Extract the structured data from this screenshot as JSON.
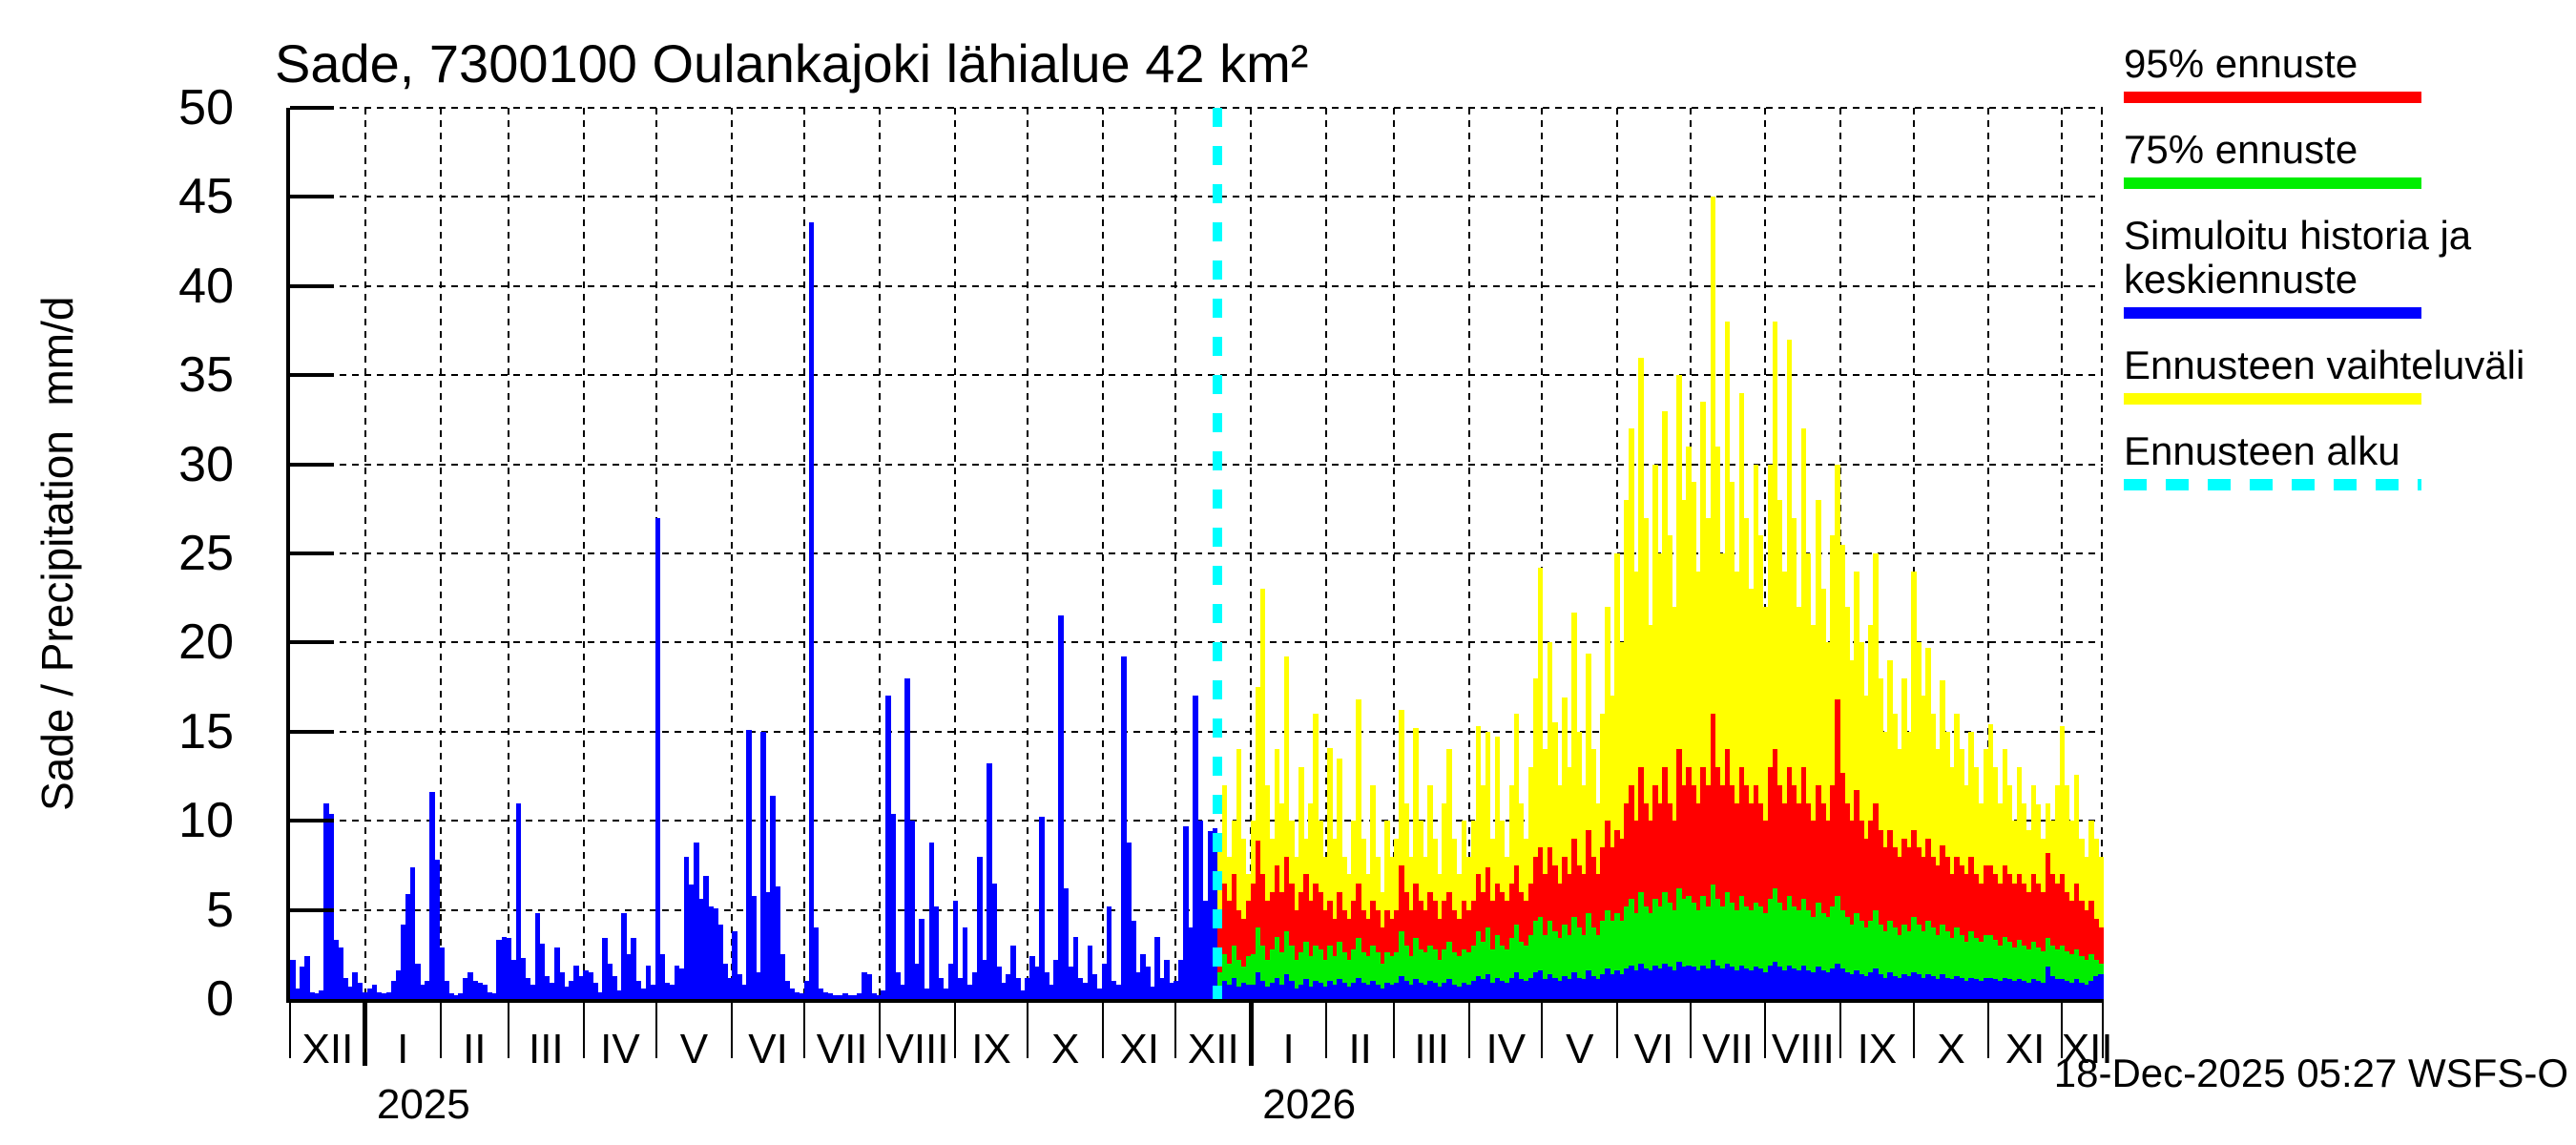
{
  "title": "Sade, 7300100 Oulankajoki lähialue 42 km²",
  "footer": "18-Dec-2025 05:27 WSFS-O",
  "y_axis": {
    "label": "Sade / Precipitation  mm/d",
    "tick_step": 5,
    "max": 50
  },
  "legend": {
    "items": [
      {
        "label": "95% ennuste",
        "color": "#ff0000",
        "style": "solid"
      },
      {
        "label": "75% ennuste",
        "color": "#00ee00",
        "style": "solid"
      },
      {
        "label": "Simuloitu historia ja keskiennuste",
        "color": "#0000ff",
        "style": "solid"
      },
      {
        "label": "Ennusteen vaihteluväli",
        "color": "#ffff00",
        "style": "solid"
      },
      {
        "label": "Ennusteen alku",
        "color": "#00ffff",
        "style": "dashed"
      }
    ]
  },
  "chart_data": {
    "type": "bar",
    "title": "Sade, 7300100 Oulankajoki lähialue 42 km²",
    "xlabel": "",
    "ylabel": "Sade / Precipitation mm/d",
    "ylim": [
      0,
      50
    ],
    "grid": true,
    "legend_position": "right-top",
    "total_days": 747,
    "forecast_start_day": 382,
    "days_per_value": 2,
    "months": [
      {
        "label": "XII",
        "start": 0
      },
      {
        "label": "I",
        "start": 31,
        "year_tick": true
      },
      {
        "label": "II",
        "start": 62
      },
      {
        "label": "III",
        "start": 90
      },
      {
        "label": "IV",
        "start": 121
      },
      {
        "label": "V",
        "start": 151
      },
      {
        "label": "VI",
        "start": 182
      },
      {
        "label": "VII",
        "start": 212
      },
      {
        "label": "VIII",
        "start": 243
      },
      {
        "label": "IX",
        "start": 274
      },
      {
        "label": "X",
        "start": 304
      },
      {
        "label": "XI",
        "start": 335
      },
      {
        "label": "XII",
        "start": 365
      },
      {
        "label": "I",
        "start": 396,
        "year_tick": true
      },
      {
        "label": "II",
        "start": 427
      },
      {
        "label": "III",
        "start": 455
      },
      {
        "label": "IV",
        "start": 486
      },
      {
        "label": "V",
        "start": 516
      },
      {
        "label": "VI",
        "start": 547
      },
      {
        "label": "VII",
        "start": 577
      },
      {
        "label": "VIII",
        "start": 608
      },
      {
        "label": "IX",
        "start": 639
      },
      {
        "label": "X",
        "start": 669
      },
      {
        "label": "XI",
        "start": 700
      },
      {
        "label": "XII",
        "start": 730
      }
    ],
    "years": [
      {
        "label": "2025",
        "day": 31
      },
      {
        "label": "2026",
        "day": 396
      }
    ],
    "history_series": {
      "name": "Simuloitu historia ja keskiennuste",
      "color": "#0000ff",
      "values": [
        2.2,
        0.6,
        1.8,
        2.4,
        0.4,
        0.3,
        0.5,
        11.0,
        10.4,
        3.3,
        2.9,
        1.2,
        0.7,
        1.5,
        0.9,
        0.4,
        0.6,
        0.8,
        0.4,
        0.3,
        0.4,
        1.0,
        1.6,
        4.2,
        5.9,
        7.4,
        2.0,
        0.8,
        1.0,
        11.6,
        7.8,
        2.9,
        1.0,
        0.3,
        0.2,
        0.3,
        1.2,
        1.5,
        1.0,
        0.9,
        0.8,
        0.4,
        0.3,
        3.3,
        3.5,
        3.4,
        2.2,
        11.0,
        2.3,
        1.2,
        0.8,
        4.8,
        3.1,
        1.3,
        0.9,
        2.9,
        1.5,
        0.7,
        1.0,
        1.9,
        1.3,
        1.6,
        1.5,
        0.9,
        0.4,
        3.4,
        2.0,
        1.3,
        0.5,
        4.8,
        2.5,
        3.4,
        1.0,
        0.6,
        1.9,
        0.8,
        27.0,
        2.5,
        0.9,
        0.8,
        1.9,
        1.7,
        8.0,
        6.4,
        8.8,
        5.6,
        6.9,
        5.2,
        5.1,
        4.2,
        2.0,
        1.2,
        3.8,
        1.4,
        0.8,
        15.1,
        5.8,
        1.5,
        15.0,
        6.0,
        11.4,
        6.3,
        2.5,
        1.0,
        0.6,
        0.4,
        0.3,
        1.0,
        43.6,
        4.0,
        0.6,
        0.4,
        0.3,
        0.2,
        0.2,
        0.3,
        0.2,
        0.2,
        0.3,
        1.5,
        1.4,
        0.3,
        0.2,
        0.5,
        17.0,
        10.4,
        1.5,
        0.8,
        18.0,
        10.0,
        2.0,
        4.5,
        0.6,
        8.8,
        5.2,
        1.2,
        0.6,
        2.0,
        5.5,
        1.2,
        4.0,
        0.8,
        1.5,
        8.0,
        2.2,
        13.2,
        6.5,
        1.8,
        0.9,
        1.4,
        3.0,
        1.2,
        0.5,
        1.2,
        2.4,
        1.8,
        10.2,
        1.5,
        0.8,
        2.2,
        21.5,
        6.2,
        1.8,
        3.5,
        1.2,
        0.9,
        3.0,
        1.4,
        0.6,
        2.0,
        5.2,
        1.0,
        0.8,
        19.2,
        8.8,
        4.4,
        1.5,
        2.5,
        1.8,
        0.7,
        3.5,
        1.2,
        2.2,
        0.9,
        1.0,
        2.2,
        9.7,
        4.0,
        17.0,
        10.0,
        5.5,
        9.4,
        9.6
      ]
    },
    "forecast_series": [
      {
        "name": "Ennusteen vaihteluväli",
        "color": "#ffff00",
        "values": [
          9,
          12,
          8,
          10,
          14,
          9,
          7,
          10,
          17.5,
          23,
          12,
          9,
          14,
          11,
          19.2,
          10,
          8,
          13,
          9,
          11,
          16,
          10,
          8,
          14.1,
          9,
          13.5,
          8,
          7,
          10,
          16.8,
          9,
          7,
          12,
          8,
          6,
          10,
          8,
          9,
          16.2,
          11,
          8,
          15.2,
          10,
          8,
          12,
          9,
          7,
          11,
          14,
          9,
          7,
          10,
          8,
          10,
          15.3,
          12,
          15,
          9,
          14.7,
          10,
          8,
          12,
          16,
          11,
          9,
          13,
          18,
          24.2,
          14,
          20,
          15.5,
          12,
          16.9,
          13,
          21.7,
          15,
          12,
          19.4,
          14,
          11,
          16,
          22,
          17,
          25,
          20,
          28,
          32,
          24,
          36,
          27,
          21,
          30,
          25,
          33,
          26,
          22,
          35,
          28,
          31,
          29,
          24,
          33.5,
          27,
          45,
          31,
          25,
          38,
          29,
          24,
          34,
          27,
          23,
          30,
          26,
          22,
          30,
          38,
          28,
          24,
          37,
          27,
          22,
          32,
          25,
          21,
          28,
          23,
          20,
          26,
          30,
          25.5,
          22,
          19,
          24,
          20,
          17,
          21,
          25,
          18,
          15,
          19,
          16,
          14,
          18,
          15,
          24,
          20,
          17,
          19.7,
          16,
          14,
          17.9,
          15,
          13,
          16,
          14,
          12,
          15,
          13,
          11,
          14,
          15.4,
          13,
          11,
          14,
          12,
          10,
          13,
          11,
          9.5,
          12,
          10.9,
          9,
          11,
          10,
          12,
          15.3,
          12,
          10,
          12.6,
          9,
          8,
          10,
          9,
          8
        ]
      },
      {
        "name": "95% ennuste",
        "color": "#ff0000",
        "values": [
          4,
          6.5,
          5.5,
          7,
          5,
          4.5,
          5.5,
          6.5,
          8.9,
          7,
          5.5,
          6,
          7.5,
          6,
          8,
          6.5,
          5,
          6,
          7,
          5.5,
          6.5,
          6,
          5,
          5.5,
          4.5,
          6,
          5,
          4.5,
          5.5,
          6.5,
          5,
          4.5,
          5.5,
          5,
          4,
          5,
          4.5,
          5,
          7.5,
          6,
          5,
          6.5,
          5.5,
          5,
          6,
          5.5,
          4.5,
          5.5,
          6,
          5,
          4.5,
          5.5,
          5,
          5.5,
          7,
          6,
          7.4,
          5.5,
          6.5,
          6,
          5.5,
          6.5,
          7.5,
          6,
          5.5,
          6.5,
          8,
          8.5,
          7,
          8.5,
          7.5,
          6.5,
          8,
          7,
          9,
          7.5,
          7,
          9.5,
          8,
          7,
          8.5,
          10,
          8.5,
          9.5,
          9,
          11,
          12,
          10,
          13,
          11,
          10,
          12,
          11,
          13,
          11,
          10,
          14,
          12,
          13,
          12,
          11,
          13,
          12,
          16,
          13,
          12,
          14,
          12,
          11,
          13,
          12,
          11,
          12,
          11,
          10,
          13,
          14,
          12,
          11,
          13,
          12,
          11,
          13,
          11,
          10,
          12,
          11,
          10,
          12,
          16.8,
          12.7,
          11,
          10,
          11.7,
          10,
          9,
          10,
          11,
          9.5,
          8.5,
          9.5,
          8.5,
          8,
          9,
          8.5,
          9.5,
          8.5,
          8,
          9,
          8,
          7.5,
          8.6,
          8,
          7,
          8,
          7.5,
          7,
          8,
          7,
          6.5,
          7.5,
          7.5,
          7,
          6.5,
          7.5,
          7,
          6.5,
          7,
          6.5,
          6,
          7,
          6.5,
          6,
          8.2,
          7,
          6.5,
          7,
          6,
          5.5,
          6.5,
          5.5,
          5,
          5.5,
          4.5,
          4
        ]
      },
      {
        "name": "75% ennuste",
        "color": "#00ee00",
        "values": [
          1.5,
          2.5,
          2,
          3,
          2.2,
          1.8,
          2.4,
          2.5,
          4,
          3,
          2.2,
          2.8,
          3.5,
          2.6,
          3.8,
          3,
          2.2,
          2.6,
          3.2,
          2.4,
          3,
          2.8,
          2.2,
          3,
          2.4,
          3.2,
          2.6,
          2.2,
          2.8,
          3.4,
          2.6,
          2.4,
          3,
          2.6,
          2,
          2.6,
          2.4,
          2.6,
          3.8,
          3,
          2.4,
          3.4,
          2.8,
          2.6,
          3,
          2.8,
          2.2,
          2.8,
          3.2,
          2.6,
          2.4,
          2.8,
          2.6,
          3,
          3.8,
          3.2,
          4,
          2.8,
          3.6,
          3,
          2.8,
          3.4,
          4.2,
          3.2,
          3,
          3.6,
          4.4,
          4.6,
          3.6,
          4.4,
          3.8,
          3.4,
          4.2,
          3.6,
          4.6,
          4,
          3.6,
          4.8,
          4,
          3.6,
          4.4,
          5,
          4.4,
          4.8,
          4.4,
          5.2,
          5.6,
          4.8,
          6,
          5.2,
          4.8,
          5.6,
          5.2,
          6,
          5.4,
          5,
          6.2,
          5.6,
          5.8,
          5.4,
          5,
          5.8,
          5.2,
          6.4,
          5.6,
          5.2,
          6,
          5.4,
          5,
          5.8,
          5.2,
          5,
          5.4,
          5.2,
          4.8,
          5.6,
          6.2,
          5.4,
          5,
          5.8,
          5.2,
          5,
          5.6,
          5,
          4.6,
          5.4,
          4.8,
          4.6,
          5.2,
          5.8,
          5,
          4.6,
          4.2,
          4.8,
          4.4,
          4,
          4.4,
          5,
          4.2,
          3.8,
          4.4,
          4,
          3.6,
          4.2,
          3.8,
          4.6,
          4.2,
          3.8,
          4.4,
          4,
          3.6,
          4.2,
          3.8,
          3.4,
          4,
          3.6,
          3.2,
          3.8,
          3.4,
          3.2,
          3.6,
          3.6,
          3.3,
          3,
          3.5,
          3.2,
          2.9,
          3.3,
          3,
          2.8,
          3.2,
          2.9,
          2.7,
          3.4,
          3,
          2.8,
          3,
          2.7,
          2.5,
          2.8,
          2.4,
          2.2,
          2.5,
          2.2,
          2
        ]
      },
      {
        "name": "keskiennuste",
        "color": "#0000ff",
        "values": [
          0.6,
          1,
          0.8,
          1.2,
          0.7,
          0.9,
          0.8,
          0.8,
          1.5,
          1,
          0.7,
          0.9,
          1.2,
          0.8,
          1.4,
          1,
          0.6,
          0.8,
          1.1,
          0.7,
          1,
          0.9,
          0.7,
          1,
          0.8,
          1.1,
          0.9,
          0.7,
          0.9,
          1.2,
          0.9,
          0.8,
          1,
          0.8,
          0.6,
          0.9,
          0.8,
          0.9,
          1.3,
          1,
          0.8,
          1.1,
          0.9,
          0.8,
          1,
          0.9,
          0.7,
          0.9,
          1.1,
          0.8,
          0.7,
          0.9,
          0.8,
          1,
          1.3,
          1.1,
          1.4,
          0.9,
          1.2,
          1,
          0.9,
          1.2,
          1.5,
          1.1,
          1,
          1.2,
          1.5,
          1.6,
          1.1,
          1.4,
          1.2,
          1,
          1.3,
          1.1,
          1.5,
          1.2,
          1.1,
          1.6,
          1.3,
          1.1,
          1.4,
          1.7,
          1.4,
          1.6,
          1.4,
          1.7,
          1.9,
          1.6,
          2,
          1.7,
          1.6,
          1.9,
          1.7,
          2,
          1.8,
          1.6,
          2.1,
          1.8,
          1.9,
          1.8,
          1.6,
          1.9,
          1.7,
          2.2,
          1.9,
          1.7,
          2,
          1.8,
          1.6,
          1.9,
          1.7,
          1.6,
          1.8,
          1.7,
          1.5,
          1.9,
          2.1,
          1.8,
          1.6,
          1.9,
          1.7,
          1.6,
          1.9,
          1.6,
          1.5,
          1.8,
          1.6,
          1.5,
          1.7,
          2,
          1.7,
          1.5,
          1.4,
          1.6,
          1.4,
          1.3,
          1.5,
          1.7,
          1.4,
          1.2,
          1.5,
          1.3,
          1.2,
          1.4,
          1.3,
          1.5,
          1.4,
          1.2,
          1.4,
          1.3,
          1.1,
          1.4,
          1.2,
          1.1,
          1.3,
          1.2,
          1,
          1.2,
          1.1,
          1,
          1.2,
          1.2,
          1.1,
          1,
          1.2,
          1.1,
          1,
          1.1,
          1,
          0.9,
          1.1,
          1,
          0.9,
          1.8,
          1.3,
          1.1,
          1.1,
          1,
          0.9,
          1.1,
          0.9,
          0.8,
          1,
          1.3,
          1.4
        ]
      }
    ]
  }
}
